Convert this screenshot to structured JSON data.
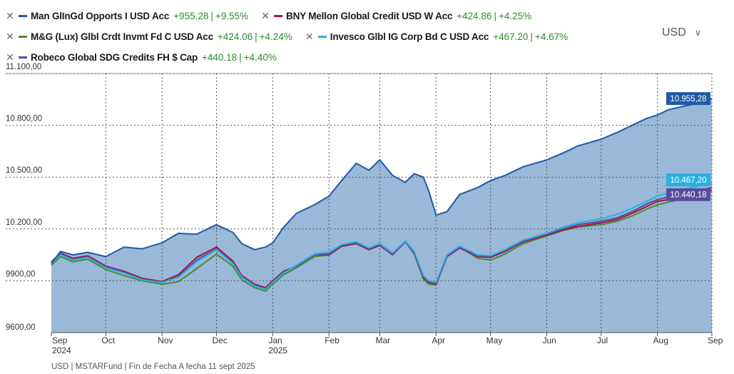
{
  "legend": [
    {
      "name": "Man GlInGd Opports I USD Acc",
      "value": "+955.28",
      "pct": "+9.55%",
      "color": "#1f5aa6"
    },
    {
      "name": "BNY Mellon Global Credit USD W Acc",
      "value": "+424.86",
      "pct": "+4.25%",
      "color": "#a0154a"
    },
    {
      "name": "M&G (Lux) Glbl Crdt Invmt Fd C USD Acc",
      "value": "+424.06",
      "pct": "+4.24%",
      "color": "#4f8a2a"
    },
    {
      "name": "Invesco Glbl IG Corp Bd C USD Acc",
      "value": "+467.20",
      "pct": "+4.67%",
      "color": "#2ab0e0"
    },
    {
      "name": "Robeco Global SDG Credits FH $ Cap",
      "value": "+440.18",
      "pct": "+4.40%",
      "color": "#5b4b9e"
    }
  ],
  "currency": {
    "label": "USD",
    "chevron": "∨"
  },
  "footer": "USD | MSTARFund | Fin de Fecha A fecha 11 sept 2025",
  "chart_data": {
    "type": "line",
    "ylim": [
      9600,
      11100
    ],
    "yticks": [
      9600,
      9900,
      10200,
      10500,
      10800,
      11100
    ],
    "ytick_labels": [
      "9600,00",
      "9900,00",
      "10.200,00",
      "10.500,00",
      "10.800,00",
      "11.100,00"
    ],
    "x_range_days": [
      0,
      364
    ],
    "x_ticks": [
      {
        "day": 0,
        "label": "Sep",
        "sublabel": "2024"
      },
      {
        "day": 30,
        "label": "Oct",
        "sublabel": ""
      },
      {
        "day": 61,
        "label": "Nov",
        "sublabel": ""
      },
      {
        "day": 91,
        "label": "Dec",
        "sublabel": ""
      },
      {
        "day": 122,
        "label": "Jan",
        "sublabel": "2025"
      },
      {
        "day": 153,
        "label": "Feb",
        "sublabel": ""
      },
      {
        "day": 181,
        "label": "Mar",
        "sublabel": ""
      },
      {
        "day": 212,
        "label": "Apr",
        "sublabel": ""
      },
      {
        "day": 242,
        "label": "May",
        "sublabel": ""
      },
      {
        "day": 273,
        "label": "Jun",
        "sublabel": ""
      },
      {
        "day": 303,
        "label": "Jul",
        "sublabel": ""
      },
      {
        "day": 334,
        "label": "Aug",
        "sublabel": ""
      },
      {
        "day": 364,
        "label": "Sep",
        "sublabel": ""
      }
    ],
    "grid": true,
    "end_labels": [
      {
        "text": "10.955,28",
        "series": 0
      },
      {
        "text": "10.467,20",
        "series": 3
      },
      {
        "text": "10.440,18",
        "series": 4
      }
    ],
    "series": [
      {
        "name": "Man GlInGd Opports I USD Acc",
        "color": "#1f5aa6",
        "fill": true,
        "days": [
          0,
          5,
          12,
          20,
          30,
          40,
          50,
          61,
          70,
          80,
          91,
          100,
          105,
          112,
          118,
          122,
          128,
          135,
          145,
          153,
          160,
          168,
          175,
          181,
          188,
          195,
          200,
          205,
          208,
          212,
          218,
          225,
          235,
          242,
          250,
          260,
          273,
          282,
          290,
          303,
          312,
          320,
          328,
          334,
          340,
          348,
          355,
          360,
          364
        ],
        "values": [
          10000,
          10070,
          10050,
          10065,
          10040,
          10095,
          10085,
          10120,
          10175,
          10170,
          10225,
          10180,
          10115,
          10080,
          10095,
          10120,
          10210,
          10290,
          10340,
          10390,
          10480,
          10580,
          10540,
          10600,
          10510,
          10470,
          10520,
          10500,
          10420,
          10280,
          10300,
          10400,
          10440,
          10480,
          10510,
          10560,
          10600,
          10640,
          10680,
          10720,
          10760,
          10800,
          10840,
          10860,
          10890,
          10910,
          10925,
          10945,
          10955
        ]
      },
      {
        "name": "BNY Mellon Global Credit USD W Acc",
        "color": "#a0154a",
        "fill": false,
        "days": [
          0,
          5,
          12,
          20,
          30,
          40,
          50,
          61,
          70,
          80,
          91,
          100,
          105,
          112,
          118,
          122,
          128,
          135,
          145,
          153,
          160,
          168,
          175,
          181,
          188,
          195,
          200,
          205,
          208,
          212,
          218,
          225,
          235,
          242,
          250,
          260,
          273,
          282,
          290,
          303,
          312,
          320,
          328,
          334,
          340,
          348,
          355,
          360,
          364
        ],
        "values": [
          10010,
          10060,
          10030,
          10045,
          9985,
          9955,
          9915,
          9895,
          9935,
          10035,
          10095,
          10015,
          9930,
          9880,
          9860,
          9900,
          9955,
          9985,
          10050,
          10050,
          10100,
          10115,
          10080,
          10105,
          10050,
          10125,
          10060,
          9920,
          9890,
          9880,
          10040,
          10090,
          10040,
          10035,
          10070,
          10125,
          10165,
          10195,
          10215,
          10235,
          10255,
          10290,
          10330,
          10360,
          10370,
          10390,
          10405,
          10415,
          10425
        ]
      },
      {
        "name": "M&G (Lux) Glbl Crdt Invmt Fd C USD Acc",
        "color": "#4f8a2a",
        "fill": false,
        "days": [
          0,
          5,
          12,
          20,
          30,
          40,
          50,
          61,
          70,
          80,
          91,
          100,
          105,
          112,
          118,
          122,
          128,
          135,
          145,
          153,
          160,
          168,
          175,
          181,
          188,
          195,
          200,
          205,
          208,
          212,
          218,
          225,
          235,
          242,
          250,
          260,
          273,
          282,
          290,
          303,
          312,
          320,
          328,
          334,
          340,
          348,
          355,
          360,
          364
        ],
        "values": [
          9990,
          10040,
          10010,
          10025,
          9965,
          9930,
          9900,
          9880,
          9895,
          9970,
          10055,
          9985,
          9905,
          9860,
          9840,
          9880,
          9935,
          9975,
          10040,
          10050,
          10100,
          10120,
          10085,
          10110,
          10055,
          10130,
          10055,
          9910,
          9880,
          9875,
          10045,
          10095,
          10030,
          10020,
          10055,
          10115,
          10160,
          10190,
          10210,
          10225,
          10245,
          10275,
          10315,
          10340,
          10355,
          10375,
          10395,
          10410,
          10424
        ]
      },
      {
        "name": "Invesco Glbl IG Corp Bd C USD Acc",
        "color": "#2ab0e0",
        "fill": false,
        "days": [
          0,
          5,
          12,
          20,
          30,
          40,
          50,
          61,
          70,
          80,
          91,
          100,
          105,
          112,
          118,
          122,
          128,
          135,
          145,
          153,
          160,
          168,
          175,
          181,
          188,
          195,
          200,
          205,
          208,
          212,
          218,
          225,
          235,
          242,
          250,
          260,
          273,
          282,
          290,
          303,
          312,
          320,
          328,
          334,
          340,
          348,
          355,
          360,
          364
        ],
        "values": [
          10000,
          10050,
          10020,
          10035,
          9975,
          9945,
          9905,
          9890,
          9920,
          10010,
          10080,
          10000,
          9920,
          9870,
          9850,
          9890,
          9945,
          9990,
          10055,
          10065,
          10110,
          10125,
          10090,
          10115,
          10060,
          10130,
          10070,
          9930,
          9900,
          9890,
          10050,
          10100,
          10050,
          10045,
          10080,
          10135,
          10175,
          10210,
          10235,
          10260,
          10285,
          10320,
          10360,
          10390,
          10410,
          10430,
          10445,
          10455,
          10467
        ]
      },
      {
        "name": "Robeco Global SDG Credits FH $ Cap",
        "color": "#5b4b9e",
        "fill": false,
        "days": [
          0,
          5,
          12,
          20,
          30,
          40,
          50,
          61,
          70,
          80,
          91,
          100,
          105,
          112,
          118,
          122,
          128,
          135,
          145,
          153,
          160,
          168,
          175,
          181,
          188,
          195,
          200,
          205,
          208,
          212,
          218,
          225,
          235,
          242,
          250,
          260,
          273,
          282,
          290,
          303,
          312,
          320,
          328,
          334,
          340,
          348,
          355,
          360,
          364
        ],
        "values": [
          10005,
          10055,
          10025,
          10040,
          9980,
          9950,
          9910,
          9890,
          9925,
          10020,
          10085,
          10005,
          9925,
          9875,
          9855,
          9895,
          9950,
          9985,
          10050,
          10055,
          10105,
          10120,
          10085,
          10110,
          10055,
          10125,
          10065,
          9925,
          9895,
          9885,
          10045,
          10095,
          10045,
          10040,
          10075,
          10130,
          10170,
          10200,
          10225,
          10245,
          10265,
          10300,
          10345,
          10370,
          10385,
          10405,
          10420,
          10430,
          10440
        ]
      }
    ]
  }
}
